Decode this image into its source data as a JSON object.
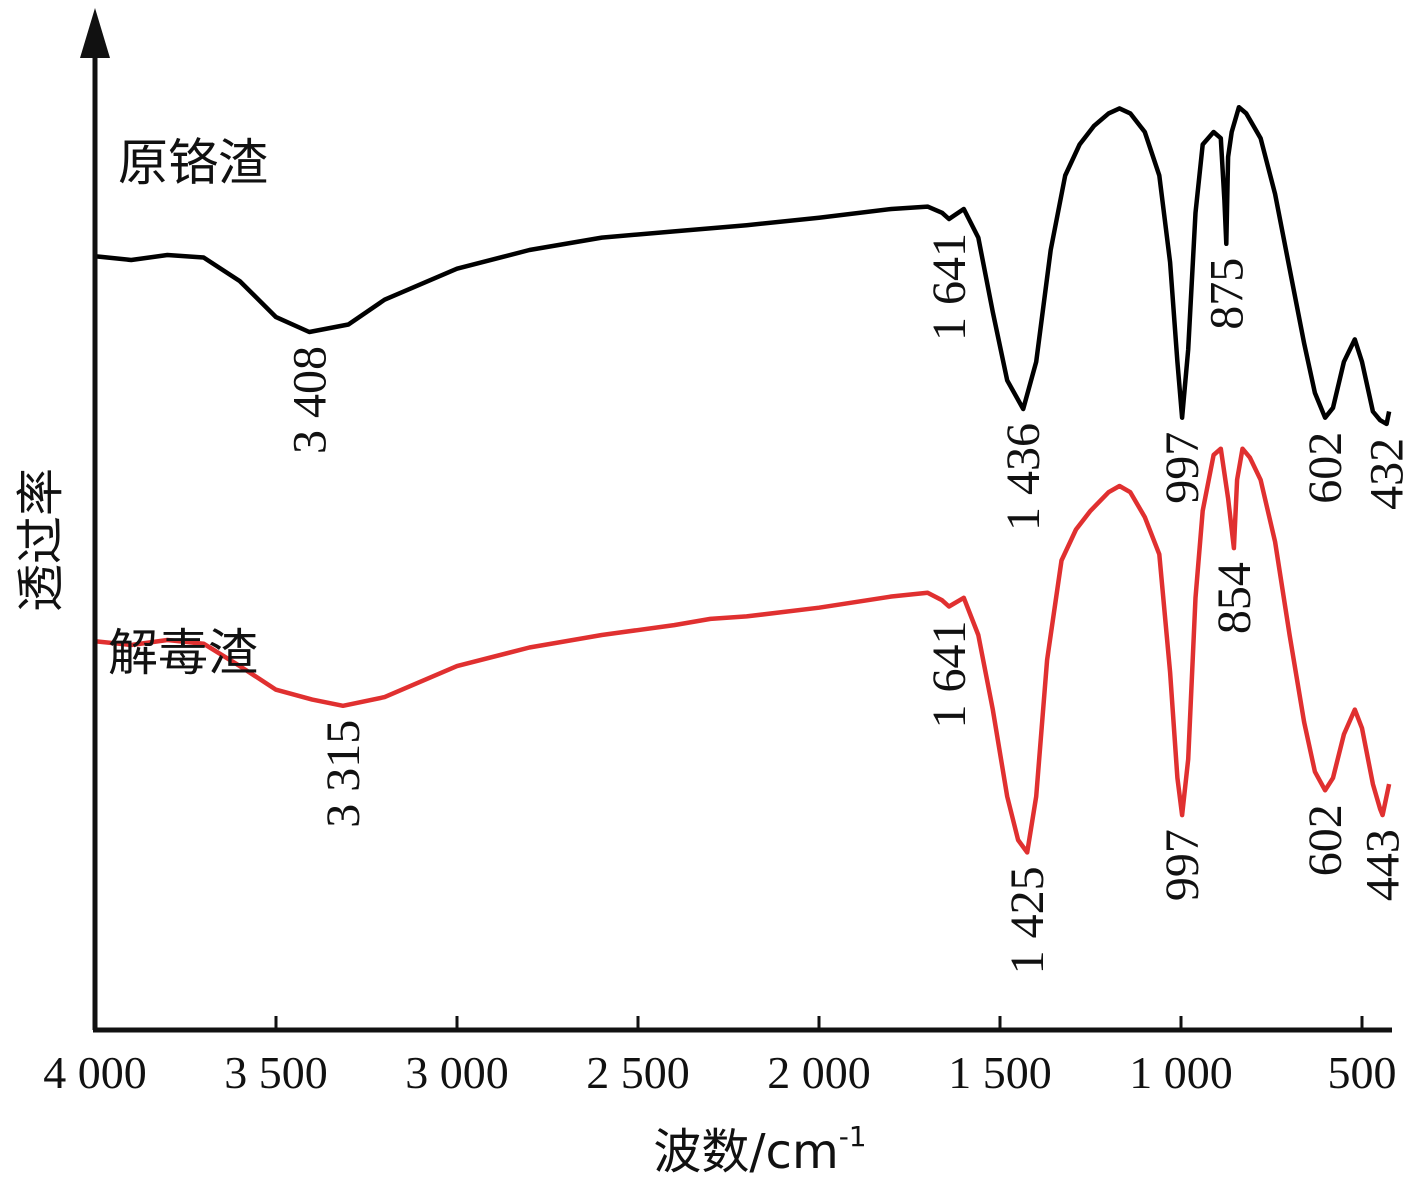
{
  "chart_data": {
    "type": "line",
    "xlabel": "波数/cm",
    "xlabel_sup": "-1",
    "ylabel": "透过率",
    "xlim": [
      4000,
      420
    ],
    "x_reversed": true,
    "yticks_shown": false,
    "xticks": [
      {
        "value": 4000,
        "label": "4 000"
      },
      {
        "value": 3500,
        "label": "3 500"
      },
      {
        "value": 3000,
        "label": "3 000"
      },
      {
        "value": 2500,
        "label": "2 500"
      },
      {
        "value": 2000,
        "label": "2 000"
      },
      {
        "value": 1500,
        "label": "1 500"
      },
      {
        "value": 1000,
        "label": "1 000"
      },
      {
        "value": 500,
        "label": "500"
      }
    ],
    "series": [
      {
        "name": "原铬渣",
        "color": "#000000",
        "points": [
          [
            4000,
            79.5
          ],
          [
            3900,
            79.2
          ],
          [
            3800,
            79.6
          ],
          [
            3700,
            79.4
          ],
          [
            3600,
            77.5
          ],
          [
            3500,
            74.6
          ],
          [
            3408,
            73.4
          ],
          [
            3300,
            74.0
          ],
          [
            3200,
            76.0
          ],
          [
            3000,
            78.5
          ],
          [
            2800,
            80.0
          ],
          [
            2600,
            81.0
          ],
          [
            2400,
            81.5
          ],
          [
            2200,
            82.0
          ],
          [
            2000,
            82.6
          ],
          [
            1800,
            83.3
          ],
          [
            1700,
            83.5
          ],
          [
            1660,
            83.0
          ],
          [
            1641,
            82.5
          ],
          [
            1600,
            83.3
          ],
          [
            1560,
            81.0
          ],
          [
            1520,
            75.0
          ],
          [
            1480,
            69.5
          ],
          [
            1436,
            67.2
          ],
          [
            1400,
            71.0
          ],
          [
            1360,
            80.0
          ],
          [
            1320,
            86.0
          ],
          [
            1280,
            88.5
          ],
          [
            1240,
            90.0
          ],
          [
            1200,
            91.0
          ],
          [
            1170,
            91.4
          ],
          [
            1140,
            91.0
          ],
          [
            1100,
            89.5
          ],
          [
            1060,
            86.0
          ],
          [
            1030,
            79.0
          ],
          [
            1010,
            71.0
          ],
          [
            997,
            66.5
          ],
          [
            980,
            72.0
          ],
          [
            960,
            83.0
          ],
          [
            940,
            88.5
          ],
          [
            910,
            89.5
          ],
          [
            890,
            89.0
          ],
          [
            880,
            84.0
          ],
          [
            875,
            80.5
          ],
          [
            870,
            87.5
          ],
          [
            860,
            89.5
          ],
          [
            840,
            91.5
          ],
          [
            820,
            91.0
          ],
          [
            780,
            89.0
          ],
          [
            740,
            84.5
          ],
          [
            700,
            78.5
          ],
          [
            660,
            72.5
          ],
          [
            630,
            68.5
          ],
          [
            602,
            66.5
          ],
          [
            580,
            67.3
          ],
          [
            550,
            71.0
          ],
          [
            520,
            72.8
          ],
          [
            500,
            71.0
          ],
          [
            470,
            67.0
          ],
          [
            450,
            66.3
          ],
          [
            432,
            66.0
          ],
          [
            425,
            67.0
          ]
        ]
      },
      {
        "name": "解毒渣",
        "color": "#e03030",
        "points": [
          [
            4000,
            48.5
          ],
          [
            3900,
            48.2
          ],
          [
            3800,
            48.6
          ],
          [
            3700,
            48.3
          ],
          [
            3600,
            46.5
          ],
          [
            3500,
            44.6
          ],
          [
            3400,
            43.8
          ],
          [
            3315,
            43.3
          ],
          [
            3200,
            44.0
          ],
          [
            3000,
            46.5
          ],
          [
            2800,
            48.0
          ],
          [
            2600,
            49.0
          ],
          [
            2400,
            49.8
          ],
          [
            2300,
            50.3
          ],
          [
            2200,
            50.5
          ],
          [
            2000,
            51.2
          ],
          [
            1800,
            52.1
          ],
          [
            1700,
            52.4
          ],
          [
            1660,
            51.8
          ],
          [
            1641,
            51.3
          ],
          [
            1600,
            52.0
          ],
          [
            1560,
            49.0
          ],
          [
            1520,
            43.0
          ],
          [
            1480,
            36.0
          ],
          [
            1450,
            32.5
          ],
          [
            1425,
            31.5
          ],
          [
            1400,
            36.0
          ],
          [
            1370,
            47.0
          ],
          [
            1330,
            55.0
          ],
          [
            1290,
            57.5
          ],
          [
            1250,
            59.0
          ],
          [
            1200,
            60.5
          ],
          [
            1170,
            61.0
          ],
          [
            1140,
            60.5
          ],
          [
            1100,
            58.5
          ],
          [
            1060,
            55.5
          ],
          [
            1030,
            46.0
          ],
          [
            1010,
            37.5
          ],
          [
            997,
            34.5
          ],
          [
            980,
            39.0
          ],
          [
            960,
            52.0
          ],
          [
            940,
            59.0
          ],
          [
            910,
            63.5
          ],
          [
            890,
            64.0
          ],
          [
            870,
            60.0
          ],
          [
            854,
            56.0
          ],
          [
            845,
            61.5
          ],
          [
            830,
            64.0
          ],
          [
            810,
            63.3
          ],
          [
            780,
            61.5
          ],
          [
            740,
            56.5
          ],
          [
            700,
            49.0
          ],
          [
            660,
            42.0
          ],
          [
            630,
            38.0
          ],
          [
            602,
            36.5
          ],
          [
            580,
            37.5
          ],
          [
            550,
            41.0
          ],
          [
            520,
            43.0
          ],
          [
            500,
            41.5
          ],
          [
            470,
            37.0
          ],
          [
            450,
            35.0
          ],
          [
            443,
            34.5
          ],
          [
            425,
            37.0
          ]
        ]
      }
    ],
    "peak_labels": [
      {
        "series": 0,
        "x": 3408,
        "label": "3 408"
      },
      {
        "series": 0,
        "x": 1641,
        "label": "1 641"
      },
      {
        "series": 0,
        "x": 1436,
        "label": "1 436"
      },
      {
        "series": 0,
        "x": 997,
        "label": "997"
      },
      {
        "series": 0,
        "x": 875,
        "label": "875"
      },
      {
        "series": 0,
        "x": 602,
        "label": "602"
      },
      {
        "series": 0,
        "x": 432,
        "label": "432"
      },
      {
        "series": 1,
        "x": 3315,
        "label": "3 315"
      },
      {
        "series": 1,
        "x": 1641,
        "label": "1 641"
      },
      {
        "series": 1,
        "x": 1425,
        "label": "1 425"
      },
      {
        "series": 1,
        "x": 997,
        "label": "997"
      },
      {
        "series": 1,
        "x": 854,
        "label": "854"
      },
      {
        "series": 1,
        "x": 602,
        "label": "602"
      },
      {
        "series": 1,
        "x": 443,
        "label": "443"
      }
    ]
  }
}
